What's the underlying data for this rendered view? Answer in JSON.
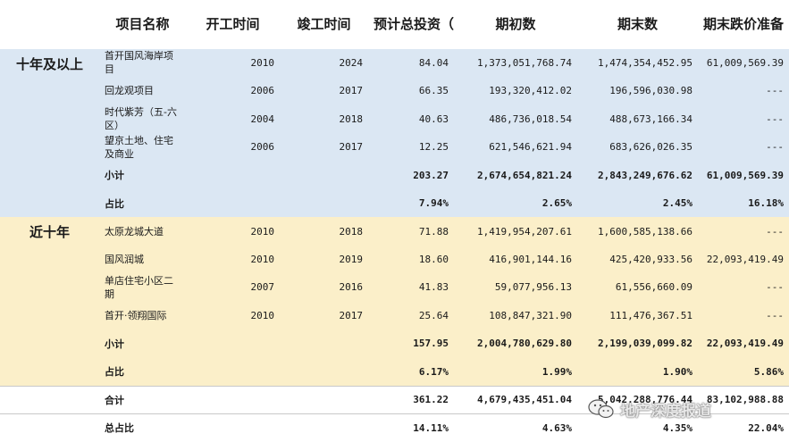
{
  "headers": {
    "name": "项目名称",
    "start": "开工时间",
    "end": "竣工时间",
    "investment": "预计总投资（亿元）",
    "opening": "期初数",
    "closing": "期末数",
    "provision": "期末跌价准备"
  },
  "group_a": {
    "label": "十年及以上",
    "rows": [
      {
        "name": "首开国风海岸项目",
        "start": "2010",
        "end": "2024",
        "investment": "84.04",
        "opening": "1,373,051,768.74",
        "closing": "1,474,354,452.95",
        "provision": "61,009,569.39"
      },
      {
        "name": "回龙观项目",
        "start": "2006",
        "end": "2017",
        "investment": "66.35",
        "opening": "193,320,412.02",
        "closing": "196,596,030.98",
        "provision": "---"
      },
      {
        "name": "时代紫芳（五-六区）",
        "start": "2004",
        "end": "2018",
        "investment": "40.63",
        "opening": "486,736,018.54",
        "closing": "488,673,166.34",
        "provision": "---"
      },
      {
        "name": "望京土地、住宅及商业",
        "start": "2006",
        "end": "2017",
        "investment": "12.25",
        "opening": "621,546,621.94",
        "closing": "683,626,026.35",
        "provision": "---"
      }
    ],
    "subtotal": {
      "label": "小计",
      "investment": "203.27",
      "opening": "2,674,654,821.24",
      "closing": "2,843,249,676.62",
      "provision": "61,009,569.39"
    },
    "ratio": {
      "label": "占比",
      "investment": "7.94%",
      "opening": "2.65%",
      "closing": "2.45%",
      "provision": "16.18%"
    }
  },
  "group_b": {
    "label": "近十年",
    "rows": [
      {
        "name": "太原龙城大道",
        "start": "2010",
        "end": "2018",
        "investment": "71.88",
        "opening": "1,419,954,207.61",
        "closing": "1,600,585,138.66",
        "provision": "---"
      },
      {
        "name": "国风润城",
        "start": "2010",
        "end": "2019",
        "investment": "18.60",
        "opening": "416,901,144.16",
        "closing": "425,420,933.56",
        "provision": "22,093,419.49"
      },
      {
        "name": "单店住宅小区二期",
        "start": "2007",
        "end": "2016",
        "investment": "41.83",
        "opening": "59,077,956.13",
        "closing": "61,556,660.09",
        "provision": "---"
      },
      {
        "name": "首开·领翔国际",
        "start": "2010",
        "end": "2017",
        "investment": "25.64",
        "opening": "108,847,321.90",
        "closing": "111,476,367.51",
        "provision": "---"
      }
    ],
    "subtotal": {
      "label": "小计",
      "investment": "157.95",
      "opening": "2,004,780,629.80",
      "closing": "2,199,039,099.82",
      "provision": "22,093,419.49"
    },
    "ratio": {
      "label": "占比",
      "investment": "6.17%",
      "opening": "1.99%",
      "closing": "1.90%",
      "provision": "5.86%"
    }
  },
  "total": {
    "label": "合计",
    "investment": "361.22",
    "opening": "4,679,435,451.04",
    "closing": "5,042,288,776.44",
    "provision": "83,102,988.88"
  },
  "total_ratio": {
    "label": "总占比",
    "investment": "14.11%",
    "opening": "4.63%",
    "closing": "4.35%",
    "provision": "22.04%"
  },
  "watermark": {
    "text": "地产深度报道",
    "icon": "wechat-icon"
  },
  "colors": {
    "group_a_bg": "#dbe7f3",
    "group_b_bg": "#fbefc9"
  }
}
